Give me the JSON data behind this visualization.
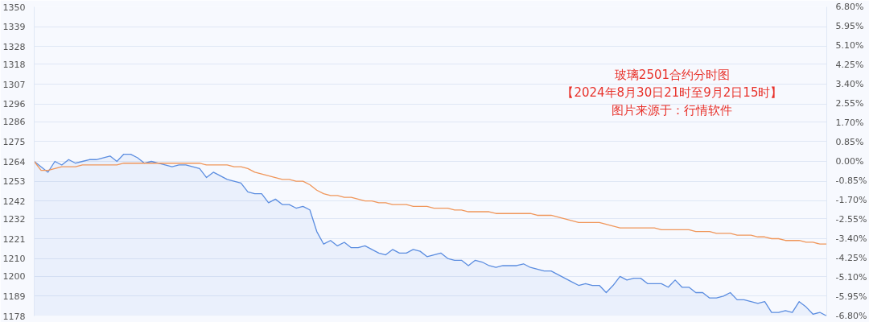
{
  "chart_data": {
    "type": "line",
    "title": "玻璃2501合约分时图",
    "subtitle": "【2024年8月30日21时至9月2日15时】",
    "annotations": [
      "图片来源于：行情软件"
    ],
    "categories": [
      null,
      null,
      null,
      null,
      null,
      null,
      null,
      null,
      null,
      null,
      null,
      null,
      null,
      null,
      null,
      null,
      null,
      null,
      null,
      null,
      null,
      null,
      null,
      null,
      null,
      null,
      null,
      null,
      null,
      null,
      null,
      null,
      null,
      null,
      null,
      null,
      null,
      null,
      null,
      null,
      null,
      null,
      null,
      null,
      null,
      null,
      null,
      null,
      null,
      null,
      null,
      null,
      null,
      null,
      null,
      null,
      null,
      null,
      null,
      null,
      null,
      null,
      null,
      null,
      null,
      null,
      null,
      null,
      null,
      null,
      null,
      null,
      null,
      null,
      null,
      null,
      null,
      null,
      null,
      null,
      null,
      null,
      null,
      null,
      null,
      null,
      null,
      null,
      null,
      null,
      null,
      null,
      null,
      null,
      null,
      null,
      null,
      null,
      null,
      null,
      null,
      null,
      null,
      null,
      null,
      null,
      null,
      null,
      null,
      null,
      null,
      null,
      null,
      null,
      null,
      null
    ],
    "ylim": [
      1178,
      1350
    ],
    "yticks": [
      1178,
      1189,
      1200,
      1210,
      1221,
      1232,
      1242,
      1253,
      1264,
      1275,
      1286,
      1296,
      1307,
      1318,
      1328,
      1339,
      1350
    ],
    "y2lim": [
      -6.8,
      6.8
    ],
    "y2ticks": [
      {
        "value": -6.8,
        "label": "-6.80%"
      },
      {
        "value": -5.95,
        "label": "-5.95%"
      },
      {
        "value": -5.1,
        "label": "-5.10%"
      },
      {
        "value": -4.25,
        "label": "-4.25%"
      },
      {
        "value": -3.4,
        "label": "-3.40%"
      },
      {
        "value": -2.55,
        "label": "-2.55%"
      },
      {
        "value": -1.7,
        "label": "-1.70%"
      },
      {
        "value": -0.85,
        "label": "-0.85%"
      },
      {
        "value": 0,
        "label": "0.00%"
      },
      {
        "value": 0.85,
        "label": "0.85%"
      },
      {
        "value": 1.7,
        "label": "1.70%"
      },
      {
        "value": 2.55,
        "label": "2.55%"
      },
      {
        "value": 3.4,
        "label": "3.40%"
      },
      {
        "value": 4.25,
        "label": "4.25%"
      },
      {
        "value": 5.1,
        "label": "5.10%"
      },
      {
        "value": 5.95,
        "label": "5.95%"
      },
      {
        "value": 6.8,
        "label": "6.80%"
      }
    ],
    "grid": "y",
    "series": [
      {
        "type": "area",
        "color": "#5b8de0",
        "values": [
          1264,
          1261,
          1258,
          1264,
          1262,
          1265,
          1263,
          1264,
          1265,
          1265,
          1266,
          1267,
          1264,
          1268,
          1268,
          1266,
          1263,
          1264,
          1263,
          1262,
          1261,
          1262,
          1262,
          1261,
          1260,
          1255,
          1258,
          1256,
          1254,
          1253,
          1252,
          1247,
          1246,
          1246,
          1241,
          1243,
          1240,
          1240,
          1238,
          1239,
          1237,
          1225,
          1218,
          1220,
          1217,
          1219,
          1216,
          1216,
          1217,
          1215,
          1213,
          1212,
          1215,
          1213,
          1213,
          1215,
          1214,
          1211,
          1212,
          1213,
          1210,
          1209,
          1209,
          1206,
          1209,
          1208,
          1206,
          1205,
          1206,
          1206,
          1206,
          1207,
          1205,
          1204,
          1203,
          1203,
          1201,
          1199,
          1197,
          1195,
          1196,
          1195,
          1195,
          1191,
          1195,
          1200,
          1198,
          1199,
          1199,
          1196,
          1196,
          1196,
          1194,
          1198,
          1194,
          1194,
          1191,
          1191,
          1188,
          1188,
          1189,
          1191,
          1187,
          1187,
          1186,
          1185,
          1186,
          1180,
          1180,
          1181,
          1180,
          1186,
          1183,
          1179,
          1180,
          1178
        ]
      },
      {
        "color": "#f0965a",
        "values": [
          1264,
          1259,
          1259,
          1260,
          1261,
          1261,
          1261,
          1262,
          1262,
          1262,
          1262,
          1262,
          1262,
          1263,
          1263,
          1263,
          1263,
          1263,
          1263,
          1263,
          1263,
          1263,
          1263,
          1263,
          1263,
          1262,
          1262,
          1262,
          1262,
          1261,
          1261,
          1260,
          1258,
          1257,
          1256,
          1255,
          1254,
          1254,
          1253,
          1253,
          1251,
          1248,
          1246,
          1245,
          1245,
          1244,
          1244,
          1243,
          1242,
          1242,
          1241,
          1241,
          1240,
          1240,
          1240,
          1239,
          1239,
          1239,
          1238,
          1238,
          1238,
          1237,
          1237,
          1236,
          1236,
          1236,
          1236,
          1235,
          1235,
          1235,
          1235,
          1235,
          1235,
          1234,
          1234,
          1234,
          1233,
          1232,
          1231,
          1230,
          1230,
          1230,
          1230,
          1229,
          1228,
          1227,
          1227,
          1227,
          1227,
          1227,
          1227,
          1226,
          1226,
          1226,
          1226,
          1226,
          1225,
          1225,
          1225,
          1224,
          1224,
          1224,
          1223,
          1223,
          1223,
          1222,
          1222,
          1221,
          1221,
          1220,
          1220,
          1220,
          1219,
          1219,
          1218,
          1218
        ]
      }
    ]
  }
}
